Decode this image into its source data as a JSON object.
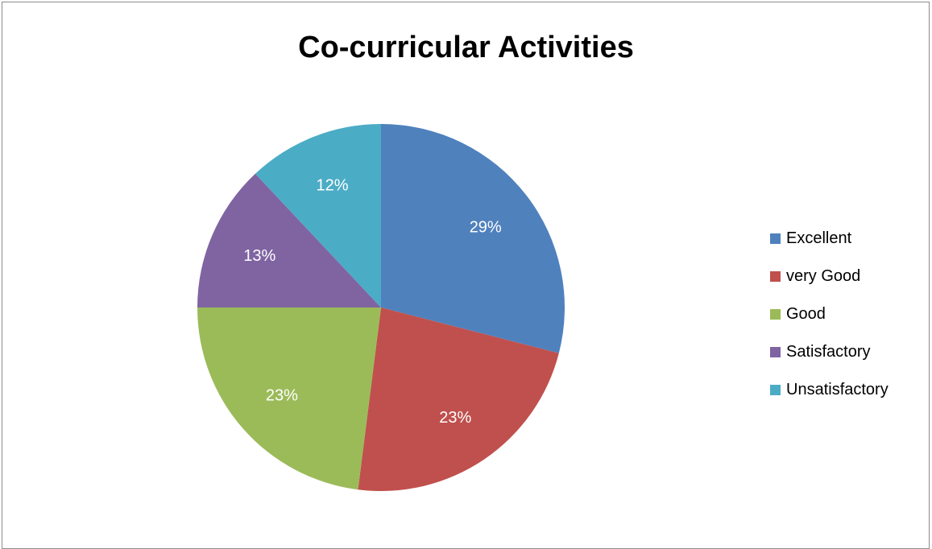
{
  "chart_data": {
    "type": "pie",
    "title": "Co-curricular Activities",
    "categories": [
      "Excellent",
      "very Good",
      "Good",
      "Satisfactory",
      "Unsatisfactory"
    ],
    "values": [
      29,
      23,
      23,
      13,
      12
    ],
    "labels": [
      "29%",
      "23%",
      "23%",
      "13%",
      "12%"
    ],
    "colors": [
      "#4f81bd",
      "#c0504d",
      "#9bbb59",
      "#8064a2",
      "#4bacc6"
    ],
    "legend_position": "right"
  }
}
